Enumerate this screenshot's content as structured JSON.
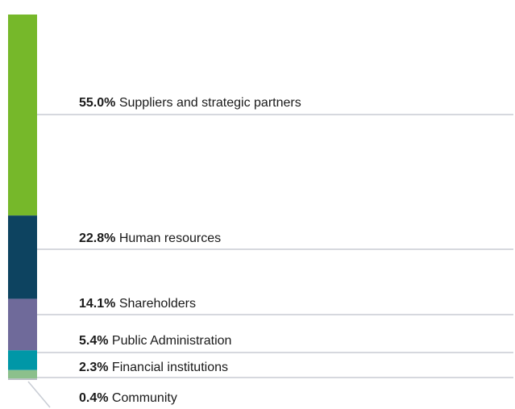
{
  "chart_data": {
    "type": "bar",
    "stacked": true,
    "series": [
      {
        "name": "Suppliers and strategic partners",
        "color": "#76b82a",
        "values": [
          55.0
        ],
        "value_labels": [
          "55.0%"
        ]
      },
      {
        "name": "Human resources",
        "color": "#0d4360",
        "values": [
          22.8
        ],
        "value_labels": [
          "22.8%"
        ]
      },
      {
        "name": "Shareholders",
        "color": "#6f6a9a",
        "values": [
          14.1
        ],
        "value_labels": [
          "14.1%"
        ]
      },
      {
        "name": "Public Administration",
        "color": "#0097a7",
        "values": [
          5.4
        ],
        "value_labels": [
          "5.4%"
        ]
      },
      {
        "name": "Financial institutions",
        "color": "#8cc08c",
        "values": [
          2.3
        ],
        "value_labels": [
          "2.3%"
        ]
      },
      {
        "name": "Community",
        "color": "#b8bcc4",
        "values": [
          0.4
        ],
        "value_labels": [
          "0.4%"
        ]
      }
    ]
  }
}
